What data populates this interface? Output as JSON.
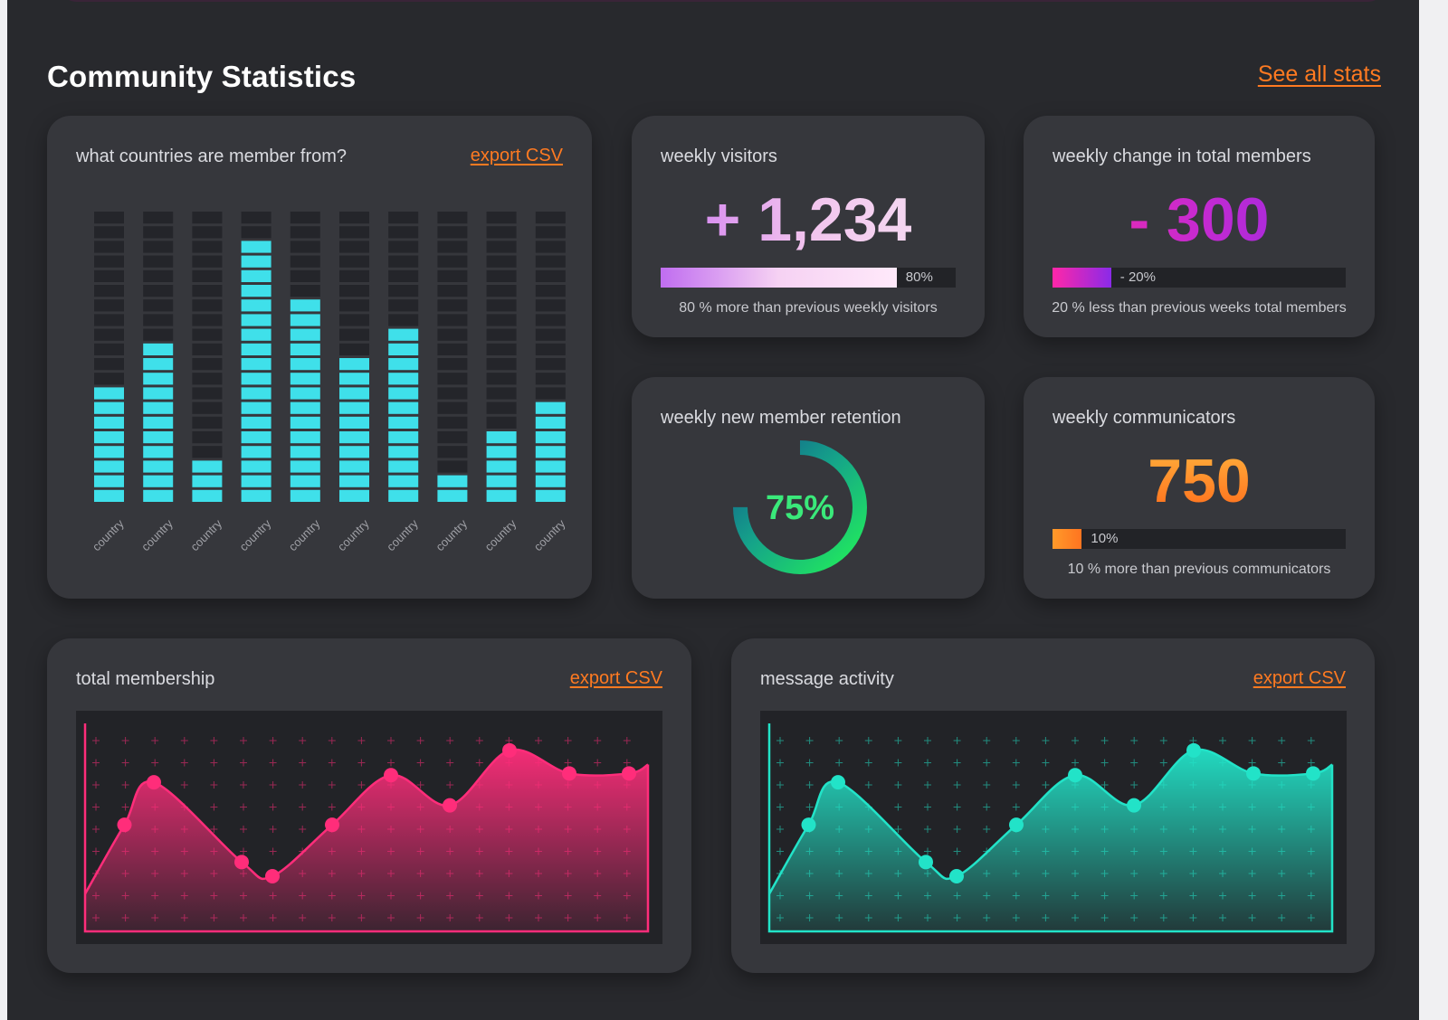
{
  "header": {
    "title": "Community Statistics",
    "see_all": "See all stats"
  },
  "countries_card": {
    "title": "what countries are member from?",
    "export": "export CSV",
    "segments_total": 20,
    "bars": [
      {
        "label": "country",
        "filled": 8
      },
      {
        "label": "country",
        "filled": 11
      },
      {
        "label": "country",
        "filled": 3
      },
      {
        "label": "country",
        "filled": 18
      },
      {
        "label": "country",
        "filled": 14
      },
      {
        "label": "country",
        "filled": 10
      },
      {
        "label": "country",
        "filled": 12
      },
      {
        "label": "country",
        "filled": 2
      },
      {
        "label": "country",
        "filled": 5
      },
      {
        "label": "country",
        "filled": 7
      }
    ]
  },
  "visitors_card": {
    "title": "weekly visitors",
    "value": "+ 1,234",
    "progress": 0.8,
    "progress_label": "80%",
    "caption": "80 % more than previous weekly visitors"
  },
  "members_change_card": {
    "title": "weekly change in total members",
    "value": "- 300",
    "progress": 0.2,
    "progress_label": "- 20%",
    "caption": "20 % less than previous weeks total members"
  },
  "retention_card": {
    "title": "weekly new member retention",
    "value": "75%",
    "progress": 0.75
  },
  "communicators_card": {
    "title": "weekly communicators",
    "value": "750",
    "progress": 0.1,
    "progress_label": "10%",
    "caption": "10 % more than previous communicators"
  },
  "membership_card": {
    "title": "total membership",
    "export": "export CSV",
    "color": "#ff2d7a",
    "points": [
      0.54,
      0.78,
      0.33,
      0.25,
      0.54,
      0.82,
      0.65,
      0.96,
      0.83,
      0.83
    ]
  },
  "messages_card": {
    "title": "message activity",
    "export": "export CSV",
    "color": "#22e3c8",
    "points": [
      0.54,
      0.78,
      0.33,
      0.25,
      0.54,
      0.82,
      0.65,
      0.96,
      0.83,
      0.83
    ]
  },
  "colors": {
    "accent": "#ff7a21",
    "bar_cyan": "#3fe0ea",
    "card_bg": "#36373c",
    "page_bg": "#28292d"
  }
}
